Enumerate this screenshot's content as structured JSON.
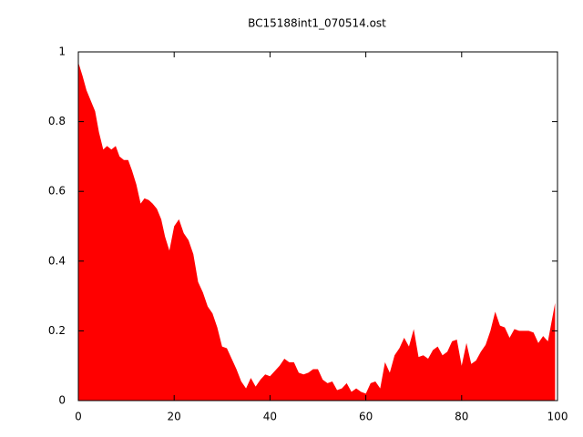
{
  "chart_data": {
    "type": "area",
    "title": "BC15188int1_070514.ost",
    "color": "#ff0000",
    "xlim": [
      0,
      100
    ],
    "ylim": [
      0,
      1
    ],
    "xticks": [
      0,
      20,
      40,
      60,
      80,
      100
    ],
    "yticks": [
      0,
      0.2,
      0.4,
      0.6,
      0.8,
      1
    ],
    "x": [
      0,
      0.9,
      1.7,
      2.6,
      3.5,
      4.3,
      5.2,
      6,
      6.9,
      7.8,
      8.6,
      9.5,
      10.4,
      11.2,
      12.1,
      13,
      13.8,
      14.7,
      15.5,
      16.4,
      17.3,
      18.1,
      19,
      20,
      21,
      22,
      23,
      24,
      25,
      26,
      27,
      28,
      29,
      30,
      31,
      32,
      33,
      34,
      35,
      36,
      37,
      38,
      39,
      40,
      41,
      42,
      43,
      44,
      45,
      46,
      47,
      48,
      49,
      50,
      51,
      52,
      53,
      54,
      55,
      56,
      57,
      58,
      59,
      60,
      61,
      62,
      63,
      64,
      65,
      66,
      67,
      68,
      69,
      70,
      71,
      72,
      73,
      74,
      75,
      76,
      77,
      78,
      79,
      80,
      81,
      82,
      83,
      84,
      85,
      86,
      87,
      88,
      89,
      90,
      91,
      92,
      93,
      94,
      95,
      96,
      97,
      98,
      99.5
    ],
    "values": [
      0.97,
      0.93,
      0.89,
      0.86,
      0.83,
      0.77,
      0.72,
      0.73,
      0.72,
      0.73,
      0.7,
      0.69,
      0.69,
      0.66,
      0.62,
      0.565,
      0.58,
      0.575,
      0.565,
      0.55,
      0.52,
      0.47,
      0.43,
      0.5,
      0.52,
      0.48,
      0.46,
      0.42,
      0.34,
      0.31,
      0.27,
      0.25,
      0.21,
      0.155,
      0.15,
      0.12,
      0.09,
      0.055,
      0.035,
      0.065,
      0.04,
      0.06,
      0.075,
      0.07,
      0.085,
      0.1,
      0.12,
      0.11,
      0.11,
      0.08,
      0.075,
      0.08,
      0.09,
      0.09,
      0.06,
      0.05,
      0.055,
      0.03,
      0.035,
      0.05,
      0.025,
      0.035,
      0.025,
      0.02,
      0.05,
      0.055,
      0.035,
      0.11,
      0.08,
      0.13,
      0.15,
      0.18,
      0.155,
      0.205,
      0.125,
      0.13,
      0.12,
      0.145,
      0.155,
      0.13,
      0.14,
      0.17,
      0.175,
      0.1,
      0.165,
      0.105,
      0.115,
      0.14,
      0.16,
      0.2,
      0.255,
      0.215,
      0.21,
      0.18,
      0.205,
      0.2,
      0.2,
      0.2,
      0.195,
      0.165,
      0.185,
      0.17,
      0.28
    ]
  }
}
